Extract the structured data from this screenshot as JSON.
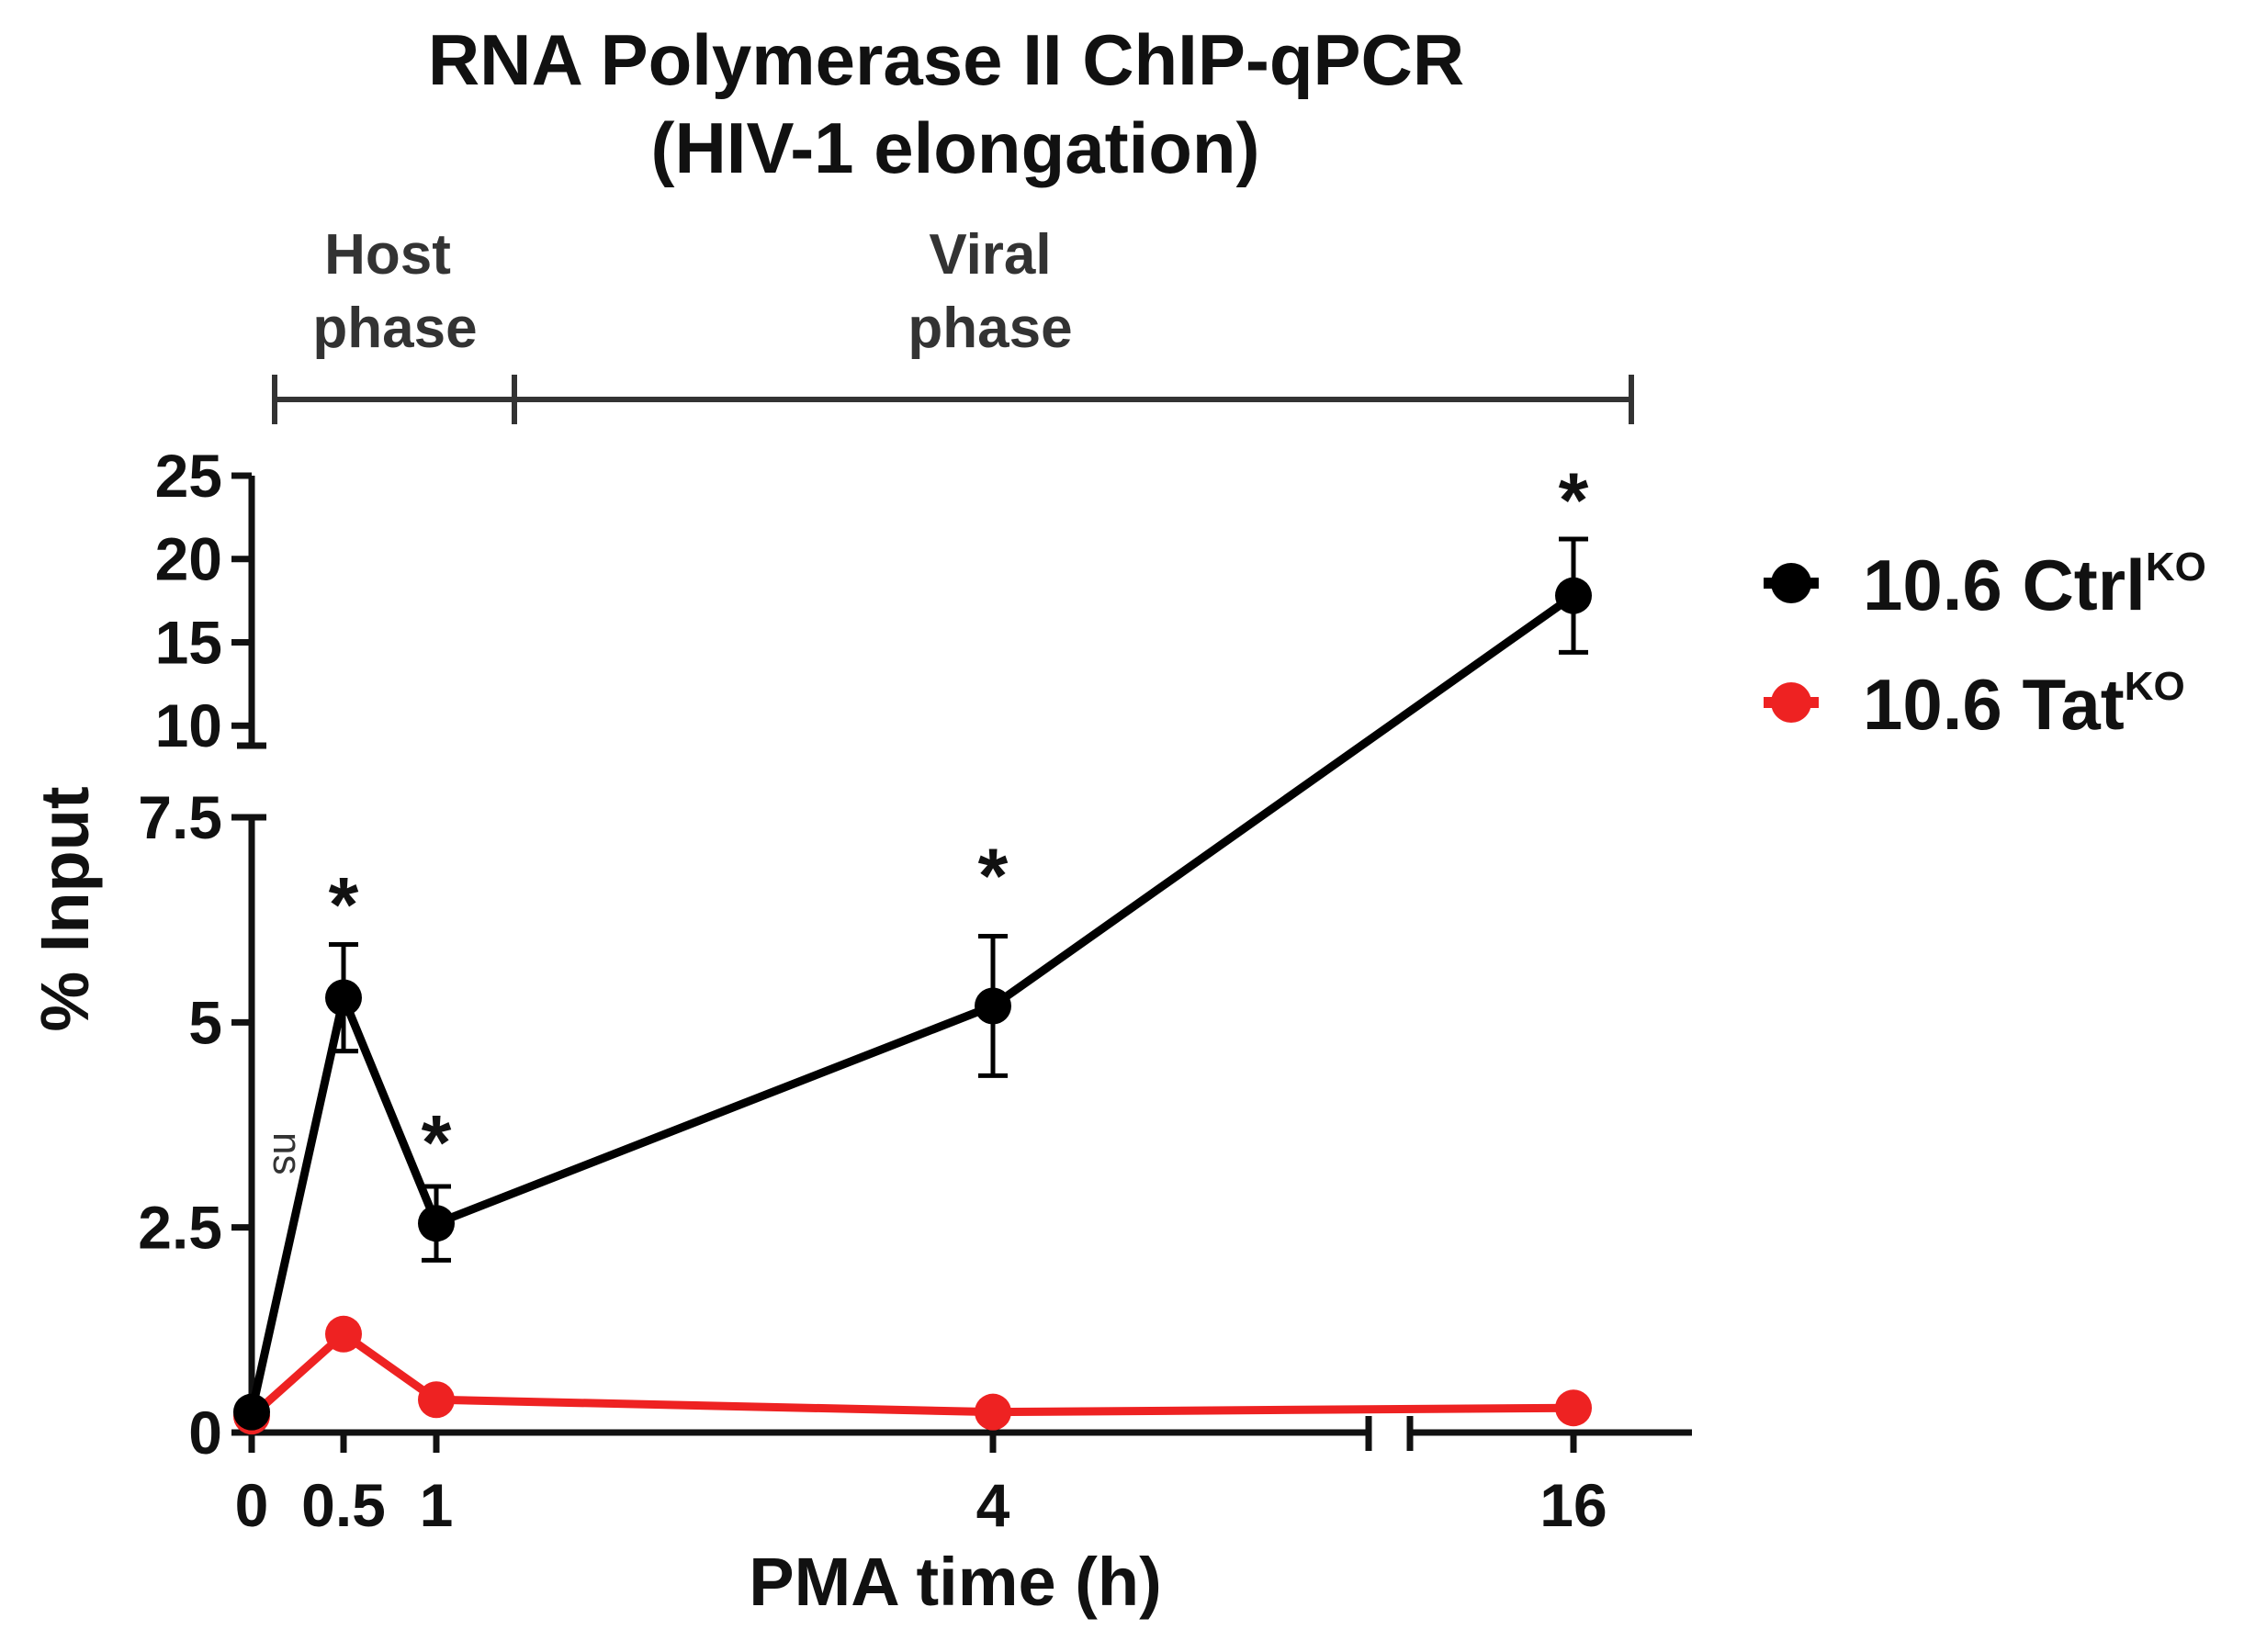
{
  "chart_data": {
    "type": "line",
    "title_line1": "RNA Polymerase II ChIP-qPCR",
    "title_line2": "(HIV-1 elongation)",
    "xlabel": "PMA time (h)",
    "ylabel": "% Input",
    "x": [
      0,
      0.5,
      1,
      4,
      16
    ],
    "x_tick_labels": [
      "0",
      "0.5",
      "1",
      "4",
      "16"
    ],
    "y_ticks_lower": [
      0,
      2.5,
      5,
      7.5
    ],
    "y_tick_labels_lower": [
      "0",
      "2.5",
      "5",
      "7.5"
    ],
    "y_ticks_upper": [
      10,
      15,
      20,
      25
    ],
    "y_tick_labels_upper": [
      "10",
      "15",
      "20",
      "25"
    ],
    "ylim_lower": [
      0,
      7.5
    ],
    "ylim_upper": [
      8.8,
      25
    ],
    "x_axis_break": "between 4 and 16",
    "y_axis_break": "between 7.5 and 8.8",
    "phases": [
      {
        "line1": "Host",
        "line2": "phase",
        "x_start": 0.1,
        "x_end": 1.4
      },
      {
        "line1": "Viral",
        "line2": "phase",
        "x_start": 1.4,
        "x_end": 16.3
      }
    ],
    "series": [
      {
        "name": "10.6 Ctrl",
        "sup": "KO",
        "color": "#000000",
        "values": [
          0.25,
          5.3,
          2.55,
          5.2,
          17.8
        ],
        "errors": [
          0.0,
          0.65,
          0.45,
          0.85,
          3.4
        ]
      },
      {
        "name": "10.6 Tat",
        "sup": "KO",
        "color": "#ee2222",
        "values": [
          0.2,
          1.2,
          0.4,
          0.25,
          0.3
        ],
        "errors": [
          0,
          0,
          0,
          0,
          0
        ]
      }
    ],
    "annotations": [
      {
        "text": "*",
        "x": 0.5,
        "y": 6.45
      },
      {
        "text": "*",
        "x": 1,
        "y": 3.55
      },
      {
        "text": "*",
        "x": 4,
        "y": 6.8
      },
      {
        "text": "*",
        "x": 16,
        "y": 23.6
      },
      {
        "text": "ns",
        "x": 0.12,
        "y": 3.4
      }
    ]
  }
}
